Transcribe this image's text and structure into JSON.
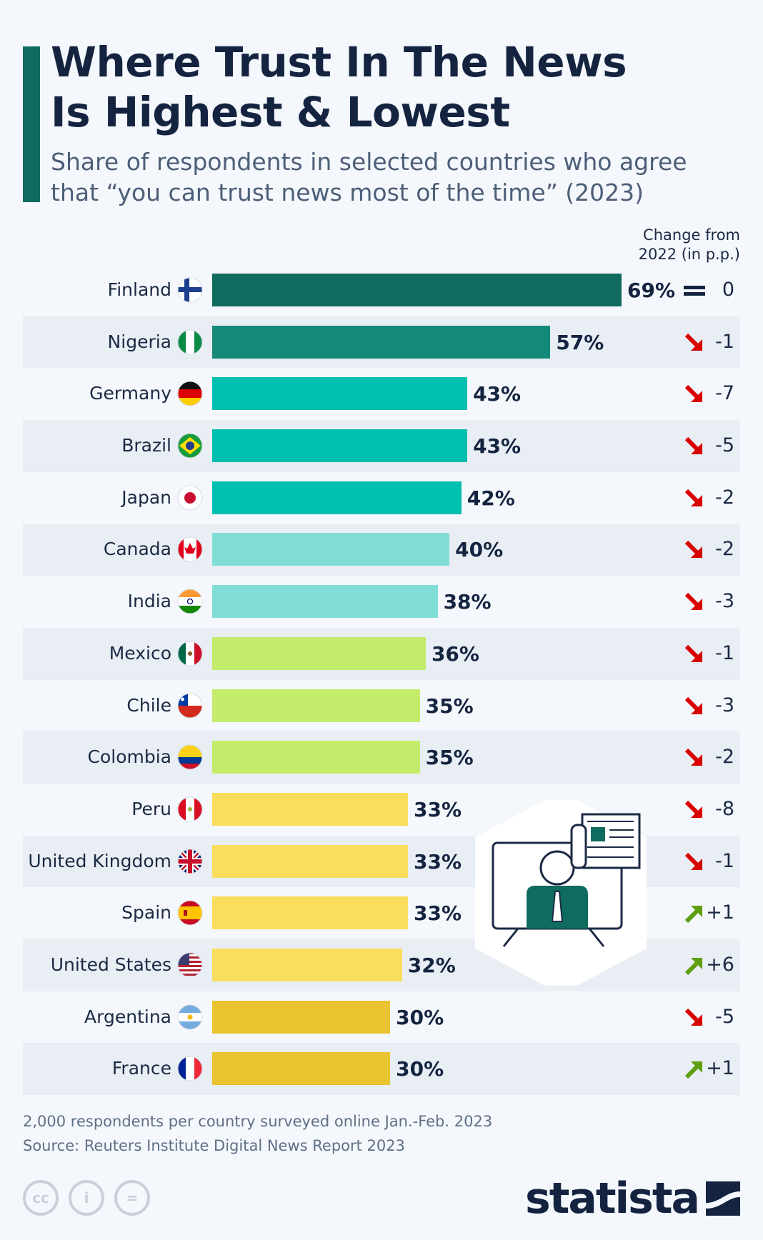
{
  "header": {
    "title_line1": "Where Trust In The News",
    "title_line2": "Is Highest & Lowest",
    "subtitle_line1": "Share of respondents in selected countries who agree",
    "subtitle_line2": "that “you can trust news most of the time” (2023)",
    "change_header_line1": "Change from",
    "change_header_line2": "2022 (in p.p.)"
  },
  "chart_data": {
    "type": "bar",
    "orientation": "horizontal",
    "unit": "%",
    "categories": [
      "Finland",
      "Nigeria",
      "Germany",
      "Brazil",
      "Japan",
      "Canada",
      "India",
      "Mexico",
      "Chile",
      "Colombia",
      "Peru",
      "United Kingdom",
      "Spain",
      "United States",
      "Argentina",
      "France"
    ],
    "values": [
      69,
      57,
      43,
      43,
      42,
      40,
      38,
      36,
      35,
      35,
      33,
      33,
      33,
      32,
      30,
      30
    ],
    "value_labels": [
      "69%",
      "57%",
      "43%",
      "43%",
      "42%",
      "40%",
      "38%",
      "36%",
      "35%",
      "35%",
      "33%",
      "33%",
      "33%",
      "32%",
      "30%",
      "30%"
    ],
    "change": [
      0,
      -1,
      -7,
      -5,
      -2,
      -2,
      -3,
      -1,
      -3,
      -2,
      -8,
      -1,
      1,
      6,
      -5,
      1
    ],
    "change_labels": [
      "0",
      "-1",
      "-7",
      "-5",
      "-2",
      "-2",
      "-3",
      "-1",
      "-3",
      "-2",
      "-8",
      "-1",
      "+1",
      "+6",
      "-5",
      "+1"
    ],
    "bar_colors": [
      "#0f6b5e",
      "#14897a",
      "#00bfae",
      "#00bfae",
      "#00bfae",
      "#80ddd6",
      "#80ddd6",
      "#c2ec6a",
      "#c2ec6a",
      "#c2ec6a",
      "#f9dd5c",
      "#f9dd5c",
      "#f9dd5c",
      "#f9dd5c",
      "#e9c330",
      "#e9c330"
    ],
    "xlim": [
      0,
      69
    ],
    "grid": false,
    "legend": "none"
  },
  "colors": {
    "down": "#d90000",
    "up": "#5e9e10",
    "equal": "#142440"
  },
  "footer": {
    "note": "2,000 respondents per country surveyed online Jan.-Feb. 2023",
    "source": "Source: Reuters Institute Digital News Report 2023"
  },
  "license": {
    "cc": "cc",
    "by": "i",
    "nd": "="
  },
  "brand": {
    "logo": "statista"
  }
}
